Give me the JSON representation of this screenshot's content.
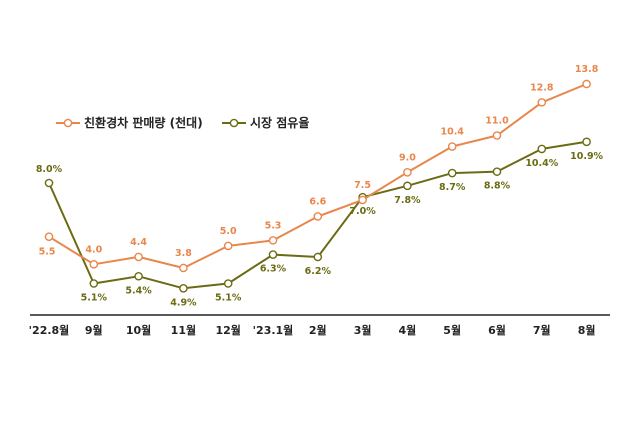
{
  "chart_data": {
    "type": "line",
    "categories": [
      "'22.8월",
      "9월",
      "10월",
      "11월",
      "12월",
      "'23.1월",
      "2월",
      "3월",
      "4월",
      "5월",
      "6월",
      "7월",
      "8월"
    ],
    "series": [
      {
        "name": "친환경차 판매량 (천대)",
        "color": "#e8874b",
        "values": [
          5.5,
          4.0,
          4.4,
          3.8,
          5.0,
          5.3,
          6.6,
          7.5,
          9.0,
          10.4,
          11.0,
          12.8,
          13.8
        ],
        "labels": [
          "5.5",
          "4.0",
          "4.4",
          "3.8",
          "5.0",
          "5.3",
          "6.6",
          "7.5",
          "9.0",
          "10.4",
          "11.0",
          "12.8",
          "13.8"
        ]
      },
      {
        "name": "시장 점유율",
        "color": "#6b6b14",
        "values": [
          8.0,
          5.1,
          5.4,
          4.9,
          5.1,
          6.3,
          6.2,
          7.0,
          7.8,
          8.7,
          8.8,
          10.4,
          10.9
        ],
        "labels": [
          "8.0%",
          "5.1%",
          "5.4%",
          "4.9%",
          "5.1%",
          "6.3%",
          "6.2%",
          "7.0%",
          "7.8%",
          "8.7%",
          "8.8%",
          "10.4%",
          "10.9%"
        ]
      }
    ],
    "legend_position": "top-left",
    "grid": false
  }
}
